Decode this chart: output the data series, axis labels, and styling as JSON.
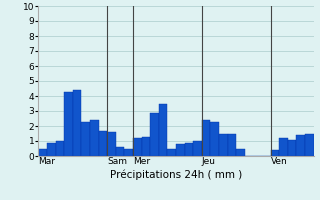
{
  "bar_color": "#1155cc",
  "bar_edge_color": "#0033aa",
  "background_color": "#dff2f2",
  "grid_color": "#aacccc",
  "ylim": [
    0,
    10
  ],
  "yticks": [
    0,
    1,
    2,
    3,
    4,
    5,
    6,
    7,
    8,
    9,
    10
  ],
  "values": [
    0.5,
    0.9,
    1.0,
    4.3,
    4.4,
    2.3,
    2.4,
    1.7,
    1.6,
    0.6,
    0.5,
    1.2,
    1.3,
    2.9,
    3.5,
    0.5,
    0.8,
    0.9,
    1.0,
    2.4,
    2.3,
    1.5,
    1.5,
    0.5,
    0.0,
    0.0,
    0.0,
    0.4,
    1.2,
    1.1,
    1.4,
    1.5
  ],
  "day_sep_indices": [
    8,
    11,
    19,
    27
  ],
  "day_label_indices": [
    0,
    8,
    11,
    19,
    27
  ],
  "day_labels": [
    "Mar",
    "Sam",
    "Mer",
    "Jeu",
    "Ven"
  ],
  "xlabel": "Précipitations 24h ( mm )",
  "xlabel_fontsize": 7.5,
  "tick_fontsize": 6.5,
  "figsize": [
    3.2,
    2.0
  ],
  "dpi": 100
}
